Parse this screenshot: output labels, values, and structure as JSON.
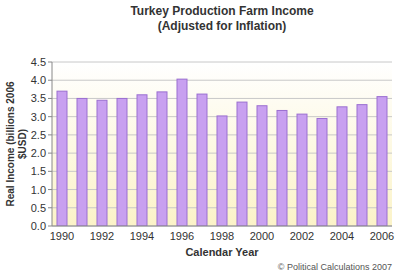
{
  "chart_data": {
    "type": "bar",
    "title": "Turkey Production Farm Income",
    "subtitle": "(Adjusted for Inflation)",
    "xlabel": "Calendar Year",
    "ylabel": "Real Income (billions 2006 $USD)",
    "annotations": [
      "© Political Calculations 2007"
    ],
    "categories": [
      "1990",
      null,
      "1992",
      null,
      "1994",
      null,
      "1996",
      null,
      "1998",
      null,
      "2000",
      null,
      "2002",
      null,
      "2004",
      null,
      "2006"
    ],
    "values": [
      3.7,
      3.5,
      3.45,
      3.5,
      3.6,
      3.68,
      4.03,
      3.62,
      3.02,
      3.4,
      3.3,
      3.17,
      3.07,
      2.95,
      3.27,
      3.33,
      3.55
    ],
    "color": "#c8a0f0",
    "ylim": [
      0,
      4.5
    ],
    "yticks": [
      {
        "value": 0,
        "label": "0.0"
      },
      0.5,
      {
        "value": 1,
        "label": "1.0"
      },
      1.5,
      {
        "value": 2,
        "label": "2.0"
      },
      2.5,
      {
        "value": 3,
        "label": "3.0"
      },
      3.5,
      {
        "value": 4,
        "label": "4.0"
      },
      4.5
    ],
    "grid": true
  }
}
